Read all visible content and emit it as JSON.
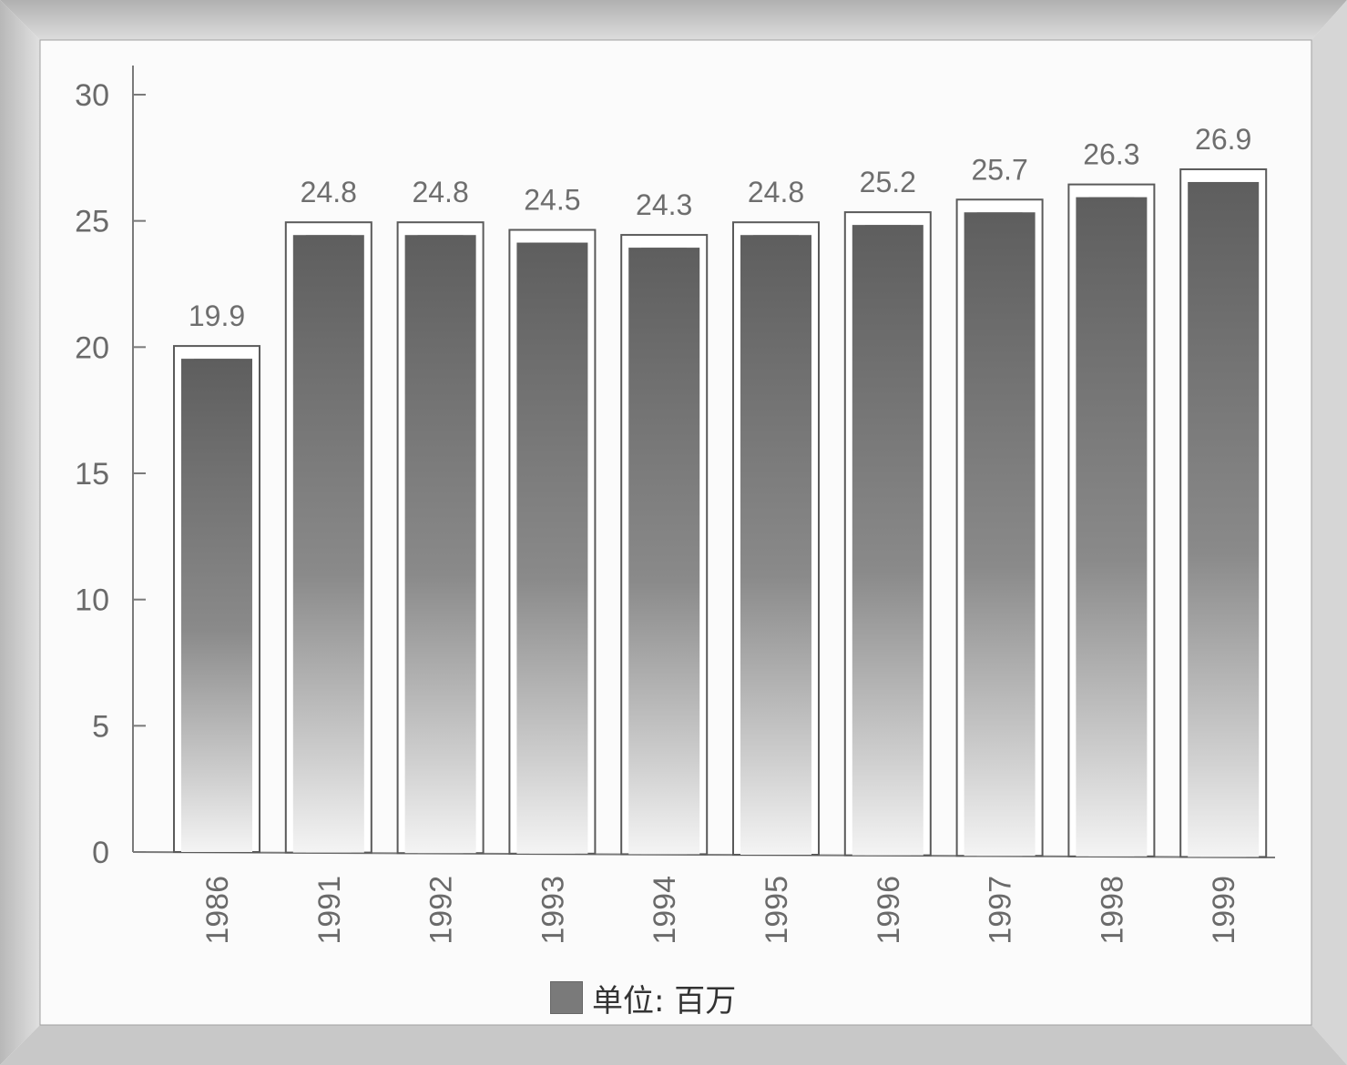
{
  "chart_data": {
    "type": "bar",
    "categories": [
      "1986",
      "1991",
      "1992",
      "1993",
      "1994",
      "1995",
      "1996",
      "1997",
      "1998",
      "1999"
    ],
    "values": [
      19.9,
      24.8,
      24.8,
      24.5,
      24.3,
      24.8,
      25.2,
      25.7,
      26.3,
      26.9
    ],
    "value_labels": [
      "19.9",
      "24.8",
      "24.8",
      "24.5",
      "24.3",
      "24.8",
      "25.2",
      "25.7",
      "26.3",
      "26.9"
    ],
    "yticks": [
      "0",
      "5",
      "10",
      "15",
      "20",
      "25",
      "30"
    ],
    "ylim": [
      0,
      30
    ],
    "legend": {
      "label": "单位: 百万",
      "position": "bottom-center"
    },
    "grid": false,
    "category_label_rotation": "vertical",
    "colors": {
      "bar": "#777777",
      "bar_outline": "#555555",
      "frame_border": "#9a9a9a"
    }
  }
}
